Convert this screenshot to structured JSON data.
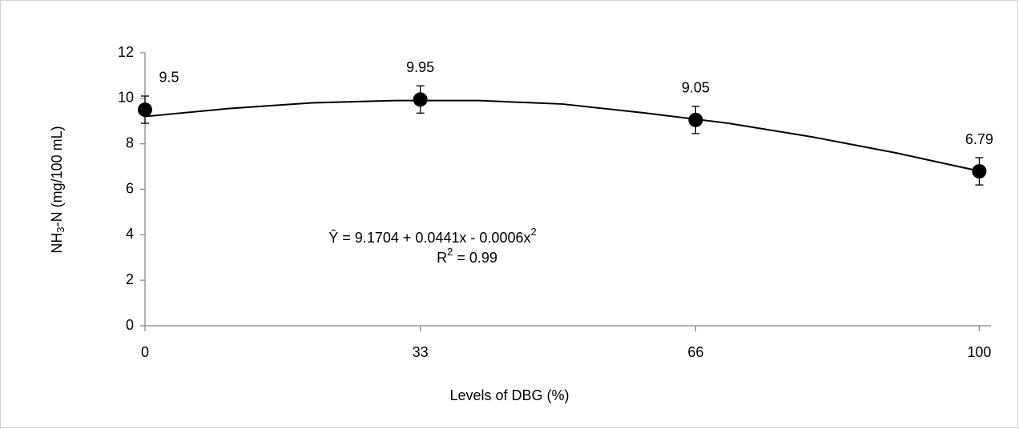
{
  "chart_data": {
    "type": "scatter",
    "x_label": "Levels of DBG (%)",
    "y_label": [
      "NH",
      "3",
      "-N (mg/100 mL)"
    ],
    "x": [
      0,
      33,
      66,
      100
    ],
    "series": [
      {
        "color": "#000000",
        "values": [
          9.5,
          9.95,
          9.05,
          6.79
        ],
        "errors": [
          0.6,
          0.6,
          0.6,
          0.6
        ]
      }
    ],
    "trendline": {
      "color": "#000000",
      "x": [
        0,
        10,
        20,
        30,
        40,
        50,
        60,
        70,
        80,
        90,
        100
      ],
      "values": [
        9.2,
        9.55,
        9.8,
        9.9,
        9.9,
        9.75,
        9.35,
        8.9,
        8.3,
        7.6,
        6.8
      ]
    },
    "equation": [
      "Ŷ = 9.1704 + 0.0441x - 0.0006x",
      "2"
    ],
    "r_squared": [
      "R",
      "2",
      " = 0.99"
    ],
    "xlim": [
      0,
      101.4
    ],
    "xticks": [
      0,
      33,
      66,
      100
    ],
    "ylim": [
      0,
      12
    ],
    "yticks": [
      0,
      2,
      4,
      6,
      8,
      10,
      12
    ],
    "grid": false
  }
}
